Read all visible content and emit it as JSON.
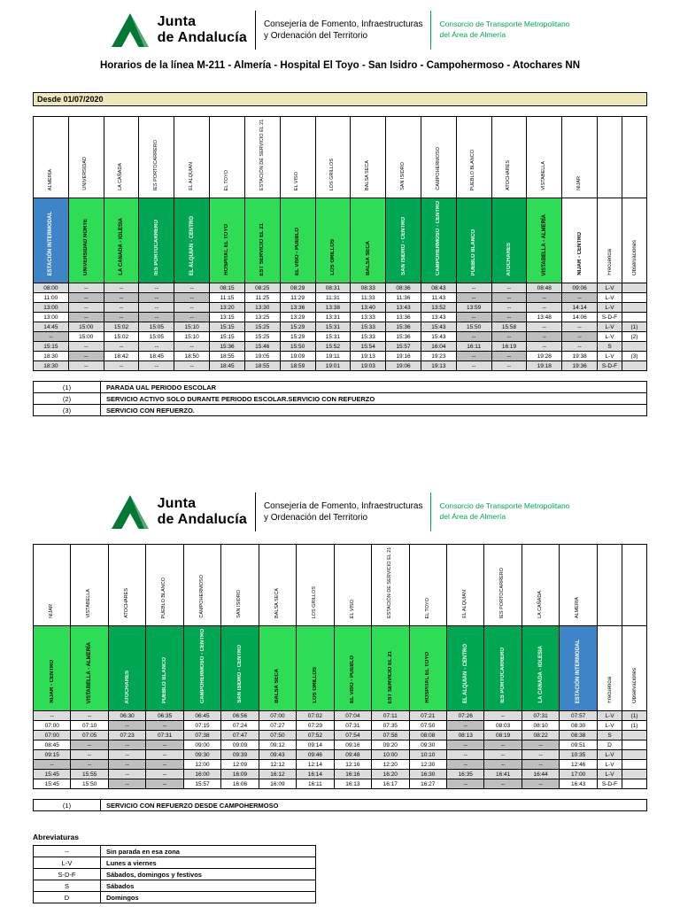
{
  "header": {
    "logo_line1": "Junta",
    "logo_line2": "de Andalucía",
    "consejeria_line1": "Consejería de Fomento, Infraestructuras",
    "consejeria_line2": "y Ordenación del Territorio",
    "consorcio_line1": "Consorcio de Transporte Metropolitano",
    "consorcio_line2": "del Área de Almería"
  },
  "title": "Horarios de la línea M-211 - Almería - Hospital El Toyo - San Isidro - Campohermoso - Atochares NN",
  "valid_from": "Desde 01/07/2020",
  "meta": {
    "frequency_header": "Frecuencia",
    "observations_header": "Observaciones"
  },
  "colors": {
    "zone_blue": "#3d85c6",
    "zone_bright_green": "#2edd55",
    "zone_dark_green": "#00a651",
    "banner_yellow": "#efe9b8",
    "stripe_gray": "#dcdcdc",
    "dash_gray": "#bfbfbf",
    "logo_green": "#007a33"
  },
  "outbound": {
    "stops": [
      {
        "zone": "ALMERIA",
        "name": "ESTACIÓN INTERMODAL",
        "color": "blue"
      },
      {
        "zone": "UNIVERSIDAD",
        "name": "UNIVERSIDAD NORTE",
        "color": "bright"
      },
      {
        "zone": "LA CAÑADA",
        "name": "LA CAÑADA - IGLESIA",
        "color": "bright"
      },
      {
        "zone": "IES PORTOCARRERO",
        "name": "IES PORTOCARRERO",
        "color": "dark"
      },
      {
        "zone": "EL ALQUIAN",
        "name": "EL ALQUIÁN - CENTRO",
        "color": "dark"
      },
      {
        "zone": "EL TOYO",
        "name": "HOSPITAL EL TOYO",
        "color": "bright"
      },
      {
        "zone": "ESTACIÓN DE SERVICIO EL 21",
        "name": "EST SERVICIO EL 21",
        "color": "bright"
      },
      {
        "zone": "EL VISO",
        "name": "EL VISO - PUEBLO",
        "color": "bright"
      },
      {
        "zone": "LOS GRILLOS",
        "name": "LOS GRILLOS",
        "color": "bright"
      },
      {
        "zone": "BALSA SECA",
        "name": "BALSA SECA",
        "color": "bright"
      },
      {
        "zone": "SAN ISIDRO",
        "name": "SAN ISIDRO - CENTRO",
        "color": "dark"
      },
      {
        "zone": "CAMPOHERMOSO",
        "name": "CAMPOHERMOSO - CENTRO",
        "color": "dark"
      },
      {
        "zone": "PUEBLO BLANCO",
        "name": "PUEBLO BLANCO",
        "color": "dark"
      },
      {
        "zone": "ATOCHARES",
        "name": "ATOCHARES",
        "color": "dark"
      },
      {
        "zone": "VISTABELLA",
        "name": "VISTABELLA - ALMERÍA",
        "color": "bright"
      },
      {
        "zone": "NIJAR",
        "name": "NIJAR - CENTRO",
        "color": "white"
      }
    ],
    "rows": [
      {
        "times": [
          "08:00",
          "--",
          "--",
          "--",
          "--",
          "08:15",
          "08:25",
          "08:29",
          "08:31",
          "08:33",
          "08:36",
          "08:43",
          "--",
          "--",
          "08:48",
          "09:06"
        ],
        "frequency": "L-V",
        "note": ""
      },
      {
        "times": [
          "11:00",
          "--",
          "--",
          "--",
          "--",
          "11:15",
          "11:25",
          "11:29",
          "11:31",
          "11:33",
          "11:36",
          "11:43",
          "--",
          "--",
          "--",
          "--"
        ],
        "frequency": "L-V",
        "note": ""
      },
      {
        "times": [
          "13:00",
          "--",
          "--",
          "--",
          "--",
          "13:20",
          "13:30",
          "13:36",
          "13:38",
          "13:40",
          "13:43",
          "13:52",
          "13:59",
          "--",
          "--",
          "14:14"
        ],
        "frequency": "L-V",
        "note": ""
      },
      {
        "times": [
          "13:00",
          "--",
          "--",
          "--",
          "--",
          "13:15",
          "13:25",
          "13:29",
          "13:31",
          "13:33",
          "13:36",
          "13:43",
          "--",
          "--",
          "13:48",
          "14:06"
        ],
        "frequency": "S-D-F",
        "note": ""
      },
      {
        "times": [
          "14:45",
          "15:00",
          "15:02",
          "15:05",
          "15:10",
          "15:15",
          "15:25",
          "15:29",
          "15:31",
          "15:33",
          "15:36",
          "15:43",
          "15:50",
          "15:58",
          "--",
          "--"
        ],
        "frequency": "L-V",
        "note": "(1)"
      },
      {
        "times": [
          "--",
          "15:00",
          "15:02",
          "15:05",
          "15:10",
          "15:15",
          "15:25",
          "15:29",
          "15:31",
          "15:33",
          "15:36",
          "15:43",
          "--",
          "--",
          "--",
          "--"
        ],
        "frequency": "L-V",
        "note": "(2)"
      },
      {
        "times": [
          "15:15",
          "--",
          "--",
          "--",
          "--",
          "15:36",
          "15:46",
          "15:50",
          "15:52",
          "15:54",
          "15:57",
          "16:04",
          "16:11",
          "16:19",
          "--",
          "--"
        ],
        "frequency": "S",
        "note": ""
      },
      {
        "times": [
          "18:30",
          "--",
          "18:42",
          "18:45",
          "18:50",
          "18:55",
          "19:05",
          "19:09",
          "19:11",
          "19:13",
          "19:16",
          "19:23",
          "--",
          "--",
          "19:28",
          "19:38"
        ],
        "frequency": "L-V",
        "note": "(3)"
      },
      {
        "times": [
          "18:30",
          "--",
          "--",
          "--",
          "--",
          "18:45",
          "18:55",
          "18:59",
          "19:01",
          "19:03",
          "19:06",
          "19:13",
          "--",
          "--",
          "19:18",
          "19:36"
        ],
        "frequency": "S-D-F",
        "note": ""
      }
    ],
    "footnotes": [
      {
        "key": "(1)",
        "text": "PARADA UAL PERIODO ESCOLAR"
      },
      {
        "key": "(2)",
        "text": "SERVICIO ACTIVO SOLO DURANTE PERIODO ESCOLAR.SERVICIO CON REFUERZO"
      },
      {
        "key": "(3)",
        "text": "SERVICIO CON REFUERZO."
      }
    ]
  },
  "inbound": {
    "stops": [
      {
        "zone": "NIJAR",
        "name": "NIJAR - CENTRO",
        "color": "bright"
      },
      {
        "zone": "VISTABELLA",
        "name": "VISTABELLA - ALMERÍA",
        "color": "bright"
      },
      {
        "zone": "ATOCHARES",
        "name": "ATOCHARES",
        "color": "dark"
      },
      {
        "zone": "PUEBLO BLANCO",
        "name": "PUEBLO BLANCO",
        "color": "dark"
      },
      {
        "zone": "CAMPOHERMOSO",
        "name": "CAMPOHERMOSO - CENTRO",
        "color": "dark"
      },
      {
        "zone": "SAN ISIDRO",
        "name": "SAN ISIDRO - CENTRO",
        "color": "dark"
      },
      {
        "zone": "BALSA SECA",
        "name": "BALSA SECA",
        "color": "bright"
      },
      {
        "zone": "LOS GRILLOS",
        "name": "LOS GRILLOS",
        "color": "bright"
      },
      {
        "zone": "EL VISO",
        "name": "EL VISO - PUEBLO",
        "color": "bright"
      },
      {
        "zone": "ESTACIÓN DE SERVICIO EL 21",
        "name": "EST SERVICIO EL 21",
        "color": "bright"
      },
      {
        "zone": "EL TOYO",
        "name": "HOSPITAL EL TOYO",
        "color": "bright"
      },
      {
        "zone": "EL ALQUIAN",
        "name": "EL ALQUIÁN - CENTRO",
        "color": "dark"
      },
      {
        "zone": "IES PORTOCARRERO",
        "name": "IES PORTOCARRERO",
        "color": "dark"
      },
      {
        "zone": "LA CAÑADA",
        "name": "LA CAÑADA - IGLESIA",
        "color": "dark"
      },
      {
        "zone": "ALMERIA",
        "name": "ESTACIÓN INTERMODAL",
        "color": "blue"
      }
    ],
    "rows": [
      {
        "times": [
          "--",
          "--",
          "06:30",
          "06:35",
          "06:45",
          "06:56",
          "07:00",
          "07:02",
          "07:04",
          "07:11",
          "07:21",
          "07:26",
          "--",
          "07:31",
          "07:57"
        ],
        "frequency": "L-V",
        "note": "(1)"
      },
      {
        "times": [
          "07:00",
          "07:10",
          "--",
          "--",
          "07:15",
          "07:24",
          "07:27",
          "07:29",
          "07:31",
          "07:35",
          "07:50",
          "--",
          "08:03",
          "08:10",
          "08:30"
        ],
        "frequency": "L-V",
        "note": "(1)"
      },
      {
        "times": [
          "07:00",
          "07:05",
          "07:23",
          "07:31",
          "07:38",
          "07:47",
          "07:50",
          "07:52",
          "07:54",
          "07:58",
          "08:08",
          "08:13",
          "08:19",
          "08:22",
          "08:38"
        ],
        "frequency": "S",
        "note": ""
      },
      {
        "times": [
          "08:45",
          "--",
          "--",
          "--",
          "09:00",
          "09:09",
          "09:12",
          "09:14",
          "09:16",
          "09:20",
          "09:30",
          "--",
          "--",
          "--",
          "09:51"
        ],
        "frequency": "D",
        "note": ""
      },
      {
        "times": [
          "09:15",
          "--",
          "--",
          "--",
          "09:30",
          "09:39",
          "09:43",
          "09:46",
          "09:48",
          "10:00",
          "10:10",
          "--",
          "--",
          "--",
          "10:35"
        ],
        "frequency": "L-V",
        "note": ""
      },
      {
        "times": [
          "--",
          "--",
          "--",
          "--",
          "12:00",
          "12:09",
          "12:12",
          "12:14",
          "12:16",
          "12:20",
          "12:30",
          "--",
          "--",
          "--",
          "12:46"
        ],
        "frequency": "L-V",
        "note": ""
      },
      {
        "times": [
          "15:45",
          "15:55",
          "--",
          "--",
          "16:00",
          "16:09",
          "16:12",
          "16:14",
          "16:16",
          "16:20",
          "16:30",
          "16:35",
          "16:41",
          "16:44",
          "17:00"
        ],
        "frequency": "L-V",
        "note": ""
      },
      {
        "times": [
          "15:45",
          "15:50",
          "--",
          "--",
          "15:57",
          "16:06",
          "16:09",
          "16:11",
          "16:13",
          "16:17",
          "16:27",
          "--",
          "--",
          "--",
          "16:43"
        ],
        "frequency": "S-D-F",
        "note": ""
      }
    ],
    "footnotes": [
      {
        "key": "(1)",
        "text": "SERVICIO CON REFUERZO DESDE CAMPOHERMOSO"
      }
    ]
  },
  "abbreviations": {
    "title": "Abreviaturas",
    "items": [
      {
        "key": "--",
        "text": "Sin parada en esa zona"
      },
      {
        "key": "L-V",
        "text": "Lunes a viernes"
      },
      {
        "key": "S-D-F",
        "text": "Sábados, domingos y festivos"
      },
      {
        "key": "S",
        "text": "Sábados"
      },
      {
        "key": "D",
        "text": "Domingos"
      }
    ]
  }
}
